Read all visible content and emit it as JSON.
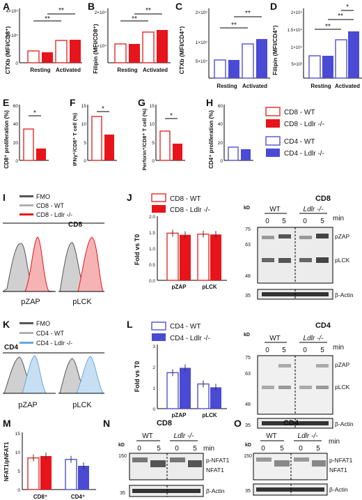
{
  "panels": {
    "A": {
      "letter": "A",
      "ylabel": "CTXb (MFI/CD8⁺)",
      "ytick_top": "4×10⁵",
      "ytick_mid": "2×10⁵",
      "ytick_zero": "0",
      "groups": [
        "Resting",
        "Activated"
      ],
      "sig": [
        "**",
        "**"
      ]
    },
    "B": {
      "letter": "B",
      "ylabel": "Filipin (MFI/CD8⁺)",
      "ytick_top": "2×10⁴",
      "ytick_mid": "1×10⁴",
      "ytick_zero": "0",
      "groups": [
        "Resting",
        "Activated"
      ],
      "sig": [
        "**",
        "**"
      ]
    },
    "C": {
      "letter": "C",
      "ylabel": "CTXb (MFI/CD4⁺)",
      "ytick_top": "2×10⁵",
      "ytick_mid": "1×10⁵",
      "ytick_low": "5×10⁴",
      "ytick_zero": "0",
      "groups": [
        "Resting",
        "Activated"
      ],
      "sig": [
        "**",
        "**"
      ]
    },
    "D": {
      "letter": "D",
      "ylabel": "Filipin (MFI/CD4⁺)",
      "ytick_top": "2×10⁴",
      "ytick_mid": "1.5×10⁴",
      "ytick_low": "1×10⁴",
      "ytick_lowest": "5×10³",
      "ytick_zero": "0",
      "groups": [
        "Resting",
        "Activated"
      ],
      "sig": [
        "**",
        "**",
        "*"
      ]
    },
    "E": {
      "letter": "E",
      "ylabel": "CD8⁺ proliferation (%)",
      "yticks": [
        "0",
        "20",
        "40",
        "60"
      ],
      "sig": "*"
    },
    "F": {
      "letter": "F",
      "ylabel": "IFNγ⁺/CD8⁺ T cell (%)",
      "yticks": [
        "0",
        "5",
        "10",
        "15"
      ],
      "sig": "*"
    },
    "G": {
      "letter": "G",
      "ylabel": "Perforin⁺/CD8⁺ T cell (%)",
      "yticks": [
        "0",
        "5",
        "10",
        "15"
      ],
      "sig": "*"
    },
    "H": {
      "letter": "H",
      "ylabel": "CD4⁺ proliferation (%)",
      "yticks": [
        "0",
        "20",
        "40",
        "60"
      ]
    },
    "I": {
      "letter": "I",
      "title": "CD8",
      "legend": [
        "FMO",
        "CD8 - WT",
        "CD8 - Ldlr -/-"
      ],
      "xlabels": [
        "pZAP",
        "pLCK"
      ]
    },
    "J": {
      "letter": "J",
      "ylabel": "Fold vs T0",
      "yticks": [
        "0.0",
        "0.5",
        "1.0",
        "1.5",
        "2.0"
      ],
      "xlabels": [
        "pZAP",
        "pLCK"
      ],
      "legend": [
        "CD8 - WT",
        "CD8 - Ldlr -/-"
      ]
    },
    "K": {
      "letter": "K",
      "title": "CD4",
      "legend": [
        "FMO",
        "CD4 - WT",
        "CD4 - Ldlr -/-"
      ],
      "xlabels": [
        "pZAP",
        "pLCK"
      ]
    },
    "L": {
      "letter": "L",
      "ylabel": "Fold vs T0",
      "yticks": [
        "0",
        "1",
        "2",
        "3"
      ],
      "xlabels": [
        "pZAP",
        "pLCK"
      ],
      "legend": [
        "CD4 - WT",
        "CD4 - Ldlr -/-"
      ]
    },
    "M": {
      "letter": "M",
      "ylabel": "NFAT1/pNFAT1",
      "yticks": [
        "0",
        "5",
        "10",
        "15"
      ],
      "xlabels": [
        "CD8⁺",
        "CD4⁺"
      ]
    },
    "N": {
      "letter": "N",
      "title": "CD8"
    },
    "O": {
      "letter": "O",
      "title": "CD4"
    }
  },
  "legend_EH": [
    "CD8 - WT",
    "CD8 - Ldlr -/-",
    "CD4 - WT",
    "CD4 - Ldlr -/-"
  ],
  "blots": {
    "kd": "kD",
    "min": "min",
    "wt": "WT",
    "ko": "Ldlr -/-",
    "t0": "0",
    "t5": "5",
    "pzap": "pZAP",
    "plck": "pLCK",
    "actin": "β-Actin",
    "pnfat": "p-NFAT1",
    "nfat": "NFAT1",
    "m75": "75",
    "m63": "63",
    "m48": "48",
    "m35": "35",
    "m150": "150"
  },
  "colors": {
    "cd8_wt": "#e53935",
    "cd8_ko": "#e8141b",
    "cd4_wt": "#5b5bd6",
    "cd4_ko": "#4a4ad4",
    "fmo": "#555555",
    "wt_hist": "#b0b0b0",
    "cd4_hist": "#6aa7d8"
  },
  "chart_data": [
    {
      "panel": "J",
      "type": "bar",
      "categories": [
        "pZAP",
        "pLCK"
      ],
      "series": [
        {
          "name": "CD8 - WT",
          "values": [
            1.47,
            1.44
          ]
        },
        {
          "name": "CD8 - Ldlr -/-",
          "values": [
            1.42,
            1.43
          ]
        }
      ],
      "ylabel": "Fold vs T0",
      "ylim": [
        0,
        2.0
      ]
    },
    {
      "panel": "L",
      "type": "bar",
      "categories": [
        "pZAP",
        "pLCK"
      ],
      "series": [
        {
          "name": "CD4 - WT",
          "values": [
            1.72,
            1.18
          ]
        },
        {
          "name": "CD4 - Ldlr -/-",
          "values": [
            1.95,
            1.02
          ]
        }
      ],
      "ylabel": "Fold vs T0",
      "ylim": [
        0,
        3
      ]
    },
    {
      "panel": "M",
      "type": "bar",
      "categories": [
        "CD8⁺",
        "CD4⁺"
      ],
      "series": [
        {
          "name": "WT",
          "values": [
            8.4,
            8.0
          ]
        },
        {
          "name": "Ldlr -/-",
          "values": [
            8.9,
            6.3
          ]
        }
      ],
      "ylabel": "NFAT1/pNFAT1",
      "ylim": [
        0,
        15
      ]
    },
    {
      "panel": "E",
      "type": "bar",
      "categories": [
        "WT",
        "Ldlr -/-"
      ],
      "values": [
        34,
        13
      ],
      "ylabel": "CD8⁺ proliferation (%)",
      "ylim": [
        0,
        60
      ]
    },
    {
      "panel": "F",
      "type": "bar",
      "categories": [
        "WT",
        "Ldlr -/-"
      ],
      "values": [
        12,
        7
      ],
      "ylabel": "IFNγ⁺/CD8⁺ T cell (%)",
      "ylim": [
        0,
        15
      ]
    },
    {
      "panel": "G",
      "type": "bar",
      "categories": [
        "WT",
        "Ldlr -/-"
      ],
      "values": [
        8,
        4.5
      ],
      "ylabel": "Perforin⁺/CD8⁺ T cell (%)",
      "ylim": [
        0,
        15
      ]
    },
    {
      "panel": "H",
      "type": "bar",
      "categories": [
        "WT",
        "Ldlr -/-"
      ],
      "values": [
        14,
        12
      ],
      "ylabel": "CD4⁺ proliferation (%)",
      "ylim": [
        0,
        60
      ]
    }
  ]
}
